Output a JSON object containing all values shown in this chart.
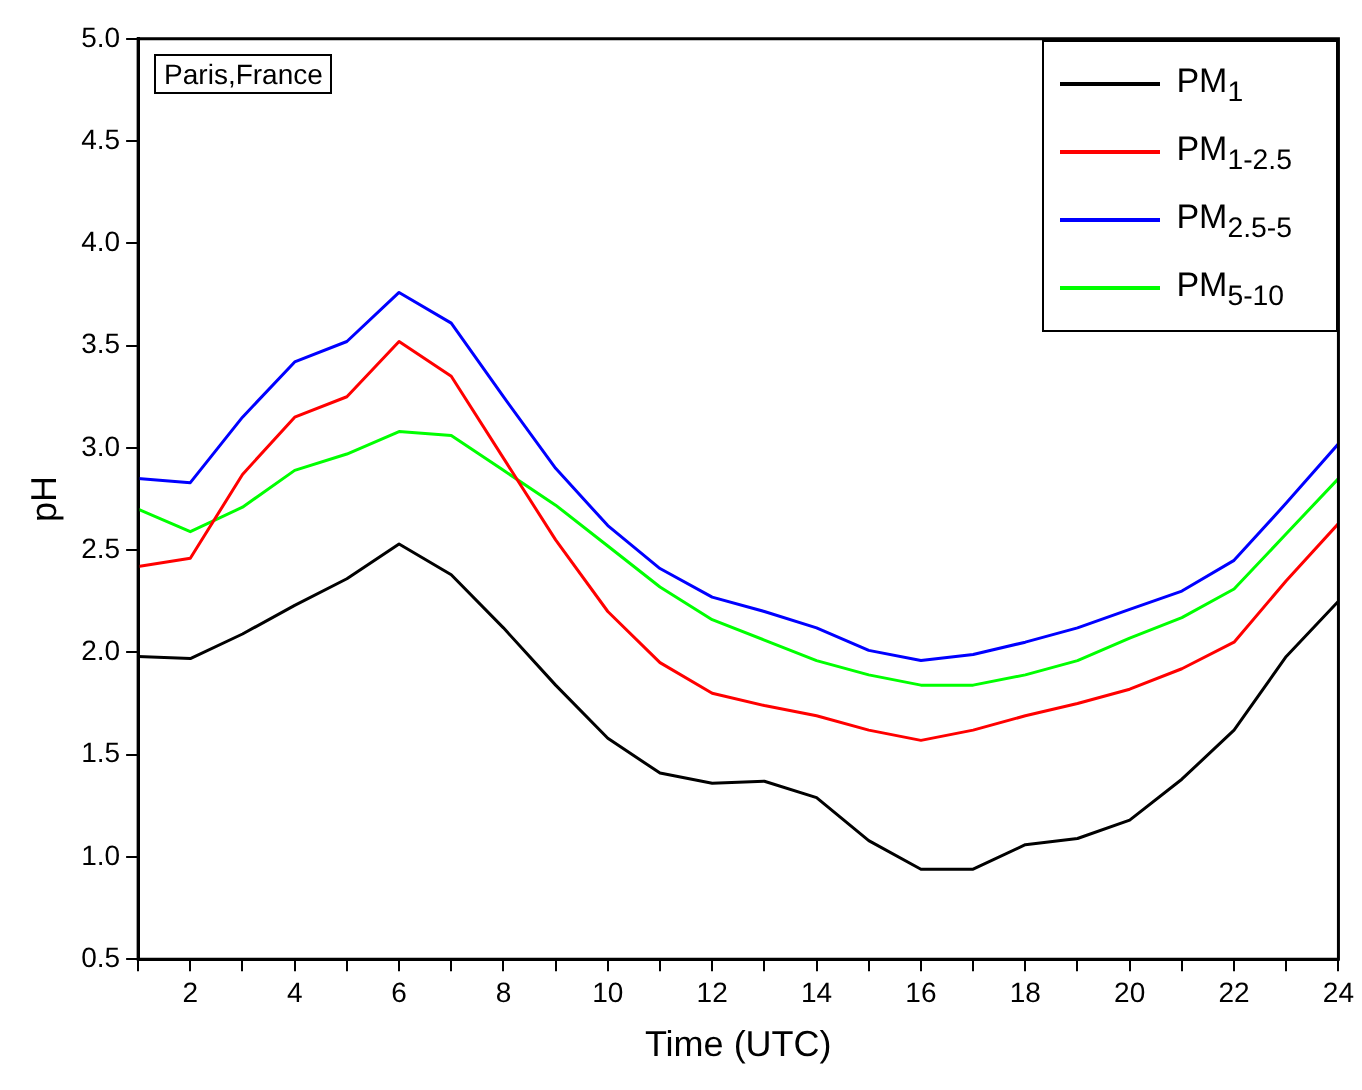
{
  "chart_data": {
    "type": "line",
    "xlabel": "Time (UTC)",
    "ylabel": "pH",
    "annotations": [
      "Paris,France"
    ],
    "x": [
      1,
      2,
      3,
      4,
      5,
      6,
      7,
      8,
      9,
      10,
      11,
      12,
      13,
      14,
      15,
      16,
      17,
      18,
      19,
      20,
      21,
      22,
      23,
      24
    ],
    "xlim": [
      1,
      24
    ],
    "xticks": [
      {
        "value": 1,
        "label": null
      },
      2,
      {
        "value": 3,
        "label": null
      },
      4,
      {
        "value": 5,
        "label": null
      },
      6,
      {
        "value": 7,
        "label": null
      },
      8,
      {
        "value": 9,
        "label": null
      },
      10,
      {
        "value": 11,
        "label": null
      },
      12,
      {
        "value": 13,
        "label": null
      },
      14,
      {
        "value": 15,
        "label": null
      },
      16,
      {
        "value": 17,
        "label": null
      },
      18,
      {
        "value": 19,
        "label": null
      },
      20,
      {
        "value": 21,
        "label": null
      },
      22,
      {
        "value": 23,
        "label": null
      },
      24
    ],
    "ylim": [
      0.5,
      5.0
    ],
    "yticks": [
      0.5,
      {
        "value": 1,
        "label": "1.0"
      },
      1.5,
      {
        "value": 2,
        "label": "2.0"
      },
      2.5,
      {
        "value": 3,
        "label": "3.0"
      },
      3.5,
      {
        "value": 4,
        "label": "4.0"
      },
      4.5,
      {
        "value": 5,
        "label": "5.0"
      }
    ],
    "grid": false,
    "legend": "top right",
    "marker": "none",
    "line_style": "solid",
    "series": [
      {
        "name": "PM$_{1}$",
        "color": "#000000",
        "values": [
          1.98,
          1.97,
          2.09,
          2.23,
          2.36,
          2.53,
          2.38,
          2.12,
          1.84,
          1.58,
          1.41,
          1.36,
          1.37,
          1.29,
          1.08,
          0.94,
          0.94,
          1.06,
          1.09,
          1.18,
          1.38,
          1.62,
          1.98,
          2.25
        ]
      },
      {
        "name": "PM$_{1-2.5}$",
        "color": "#ff0000",
        "values": [
          2.42,
          2.46,
          2.87,
          3.15,
          3.25,
          3.52,
          3.35,
          2.95,
          2.55,
          2.2,
          1.95,
          1.8,
          1.74,
          1.69,
          1.62,
          1.57,
          1.62,
          1.69,
          1.75,
          1.82,
          1.92,
          2.05,
          2.35,
          2.63
        ]
      },
      {
        "name": "PM$_{2.5-5}$",
        "color": "#0000ff",
        "values": [
          2.85,
          2.83,
          3.15,
          3.42,
          3.52,
          3.76,
          3.61,
          3.25,
          2.9,
          2.62,
          2.41,
          2.27,
          2.2,
          2.12,
          2.01,
          1.96,
          1.99,
          2.05,
          2.12,
          2.21,
          2.3,
          2.45,
          2.73,
          3.02
        ]
      },
      {
        "name": "PM$_{5-10}$",
        "color": "#00ff00",
        "values": [
          2.7,
          2.59,
          2.71,
          2.89,
          2.97,
          3.08,
          3.06,
          2.89,
          2.72,
          2.52,
          2.32,
          2.16,
          2.06,
          1.96,
          1.89,
          1.84,
          1.84,
          1.89,
          1.96,
          2.07,
          2.17,
          2.31,
          2.58,
          2.85
        ]
      }
    ]
  }
}
